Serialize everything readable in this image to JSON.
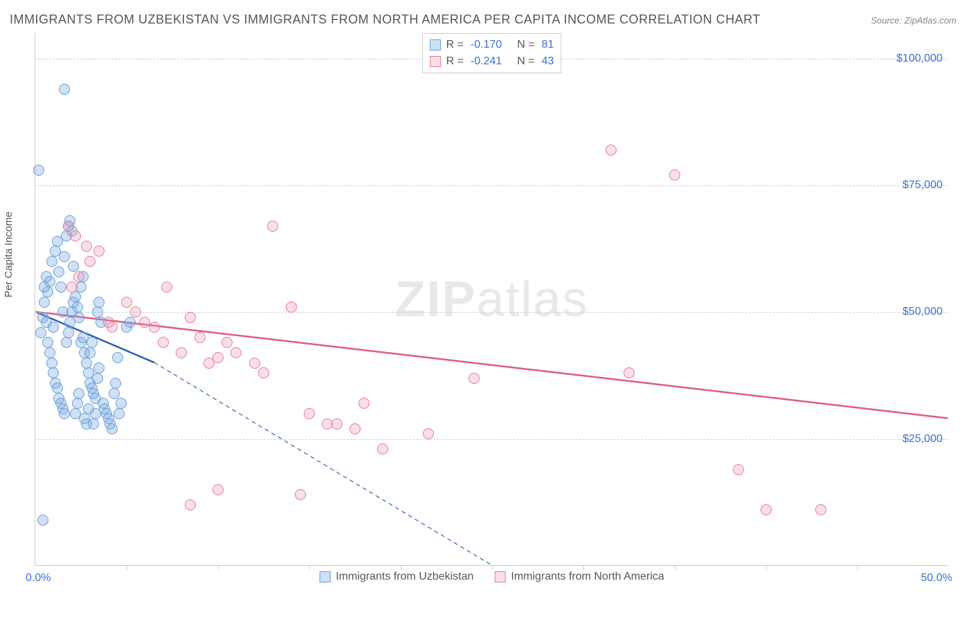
{
  "title": "IMMIGRANTS FROM UZBEKISTAN VS IMMIGRANTS FROM NORTH AMERICA PER CAPITA INCOME CORRELATION CHART",
  "source": "Source: ZipAtlas.com",
  "ylabel": "Per Capita Income",
  "watermark_zip": "ZIP",
  "watermark_atlas": "atlas",
  "chart": {
    "type": "scatter",
    "xlim": [
      0,
      50
    ],
    "ylim": [
      0,
      105000
    ],
    "xaxis_min_label": "0.0%",
    "xaxis_max_label": "50.0%",
    "xticks": [
      5,
      10,
      15,
      20,
      25,
      30,
      35,
      40,
      45
    ],
    "yticks": [
      {
        "v": 25000,
        "label": "$25,000"
      },
      {
        "v": 50000,
        "label": "$50,000"
      },
      {
        "v": 75000,
        "label": "$75,000"
      },
      {
        "v": 100000,
        "label": "$100,000"
      }
    ],
    "grid_color": "#d0d0d0",
    "background_color": "#ffffff",
    "marker_radius": 8,
    "series": [
      {
        "key": "uzbekistan",
        "label": "Immigrants from Uzbekistan",
        "fill": "rgba(120,170,225,0.35)",
        "stroke": "#6a9fd8",
        "R": "-0.170",
        "N": "81",
        "trend": {
          "x1": 0,
          "y1": 50000,
          "x2": 6.5,
          "y2": 40000,
          "ext_x2": 25,
          "ext_y2": 0,
          "color": "#2c5fb3",
          "width": 2.5,
          "dash": "6,5"
        },
        "points": [
          [
            0.2,
            78000
          ],
          [
            1.6,
            94000
          ],
          [
            0.3,
            46000
          ],
          [
            0.4,
            49000
          ],
          [
            0.5,
            52000
          ],
          [
            0.6,
            48000
          ],
          [
            0.7,
            54000
          ],
          [
            0.8,
            56000
          ],
          [
            0.9,
            60000
          ],
          [
            1.0,
            47000
          ],
          [
            1.1,
            62000
          ],
          [
            1.2,
            64000
          ],
          [
            1.3,
            58000
          ],
          [
            1.4,
            55000
          ],
          [
            1.5,
            50000
          ],
          [
            1.6,
            61000
          ],
          [
            1.7,
            65000
          ],
          [
            1.8,
            67000
          ],
          [
            1.9,
            68000
          ],
          [
            2.0,
            66000
          ],
          [
            2.1,
            59000
          ],
          [
            2.2,
            53000
          ],
          [
            2.3,
            51000
          ],
          [
            2.4,
            49000
          ],
          [
            2.5,
            44000
          ],
          [
            2.6,
            45000
          ],
          [
            2.7,
            42000
          ],
          [
            2.8,
            40000
          ],
          [
            2.9,
            38000
          ],
          [
            3.0,
            36000
          ],
          [
            3.1,
            35000
          ],
          [
            3.2,
            34000
          ],
          [
            3.3,
            33000
          ],
          [
            3.4,
            37000
          ],
          [
            3.5,
            39000
          ],
          [
            3.6,
            48000
          ],
          [
            3.7,
            32000
          ],
          [
            3.8,
            31000
          ],
          [
            3.9,
            30000
          ],
          [
            4.0,
            29000
          ],
          [
            4.1,
            28000
          ],
          [
            4.2,
            27000
          ],
          [
            4.3,
            34000
          ],
          [
            4.4,
            36000
          ],
          [
            4.5,
            41000
          ],
          [
            0.4,
            9000
          ],
          [
            0.5,
            55000
          ],
          [
            0.6,
            57000
          ],
          [
            0.7,
            44000
          ],
          [
            0.8,
            42000
          ],
          [
            0.9,
            40000
          ],
          [
            1.0,
            38000
          ],
          [
            1.1,
            36000
          ],
          [
            1.2,
            35000
          ],
          [
            1.3,
            33000
          ],
          [
            1.4,
            32000
          ],
          [
            1.5,
            31000
          ],
          [
            1.6,
            30000
          ],
          [
            1.7,
            44000
          ],
          [
            1.8,
            46000
          ],
          [
            1.9,
            48000
          ],
          [
            2.0,
            50000
          ],
          [
            2.1,
            52000
          ],
          [
            2.2,
            30000
          ],
          [
            2.3,
            32000
          ],
          [
            2.4,
            34000
          ],
          [
            2.5,
            55000
          ],
          [
            2.6,
            57000
          ],
          [
            2.7,
            29000
          ],
          [
            2.8,
            28000
          ],
          [
            2.9,
            31000
          ],
          [
            3.0,
            42000
          ],
          [
            3.1,
            44000
          ],
          [
            3.2,
            28000
          ],
          [
            3.3,
            30000
          ],
          [
            3.4,
            50000
          ],
          [
            3.5,
            52000
          ],
          [
            4.6,
            30000
          ],
          [
            4.7,
            32000
          ],
          [
            5.0,
            47000
          ],
          [
            5.2,
            48000
          ]
        ]
      },
      {
        "key": "north_america",
        "label": "Immigrants from North America",
        "fill": "rgba(240,150,175,0.30)",
        "stroke": "#e87a9a",
        "R": "-0.241",
        "N": "43",
        "trend": {
          "x1": 0,
          "y1": 50000,
          "x2": 50,
          "y2": 29000,
          "color": "#e15a84",
          "width": 2.5
        },
        "points": [
          [
            1.8,
            67000
          ],
          [
            2.2,
            65000
          ],
          [
            2.8,
            63000
          ],
          [
            2.0,
            55000
          ],
          [
            2.4,
            57000
          ],
          [
            3.0,
            60000
          ],
          [
            3.5,
            62000
          ],
          [
            4.0,
            48000
          ],
          [
            4.2,
            47000
          ],
          [
            5.0,
            52000
          ],
          [
            5.5,
            50000
          ],
          [
            6.0,
            48000
          ],
          [
            6.5,
            47000
          ],
          [
            7.0,
            44000
          ],
          [
            7.2,
            55000
          ],
          [
            8.0,
            42000
          ],
          [
            8.5,
            49000
          ],
          [
            9.0,
            45000
          ],
          [
            9.5,
            40000
          ],
          [
            10.0,
            41000
          ],
          [
            10.5,
            44000
          ],
          [
            11.0,
            42000
          ],
          [
            12.0,
            40000
          ],
          [
            12.5,
            38000
          ],
          [
            13.0,
            67000
          ],
          [
            14.0,
            51000
          ],
          [
            14.5,
            14000
          ],
          [
            15.0,
            30000
          ],
          [
            16.0,
            28000
          ],
          [
            16.5,
            28000
          ],
          [
            17.5,
            27000
          ],
          [
            18.0,
            32000
          ],
          [
            19.0,
            23000
          ],
          [
            21.5,
            26000
          ],
          [
            24.0,
            37000
          ],
          [
            31.5,
            82000
          ],
          [
            32.5,
            38000
          ],
          [
            35.0,
            77000
          ],
          [
            38.5,
            19000
          ],
          [
            40.0,
            11000
          ],
          [
            43.0,
            11000
          ],
          [
            8.5,
            12000
          ],
          [
            10.0,
            15000
          ]
        ]
      }
    ]
  }
}
